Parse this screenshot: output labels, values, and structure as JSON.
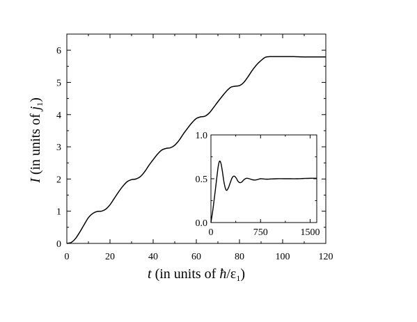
{
  "chart_data": [
    {
      "type": "line",
      "title": "",
      "xlabel": {
        "var": "t",
        "text": " (in units of ",
        "hbar": "ħ",
        "eps": "/ε",
        "sub": "1",
        "close": ")"
      },
      "ylabel": {
        "var": "I",
        "text": " (in units of ",
        "j": "j",
        "sub": "1",
        "close": ")"
      },
      "xlim": [
        0,
        120
      ],
      "ylim": [
        0,
        6.5
      ],
      "xticks": [
        0,
        20,
        40,
        60,
        80,
        100,
        120
      ],
      "yticks": [
        0,
        1,
        2,
        3,
        4,
        5,
        6
      ],
      "grid": false,
      "series": [
        {
          "color": "#000000",
          "x": [
            0,
            2,
            4,
            6,
            8,
            10,
            12,
            14,
            16,
            18,
            20,
            22,
            24,
            26,
            28,
            30,
            32,
            34,
            36,
            38,
            40,
            42,
            44,
            46,
            48,
            50,
            52,
            54,
            56,
            58,
            60,
            62,
            64,
            66,
            68,
            70,
            72,
            74,
            76,
            78,
            80,
            82,
            84,
            86,
            88,
            90,
            92,
            94,
            96,
            100,
            105,
            110,
            115,
            120
          ],
          "y": [
            0,
            0.03,
            0.15,
            0.35,
            0.58,
            0.8,
            0.93,
            0.99,
            1.0,
            1.06,
            1.2,
            1.4,
            1.6,
            1.78,
            1.92,
            1.98,
            2.0,
            2.07,
            2.22,
            2.42,
            2.6,
            2.77,
            2.9,
            2.95,
            2.97,
            3.05,
            3.2,
            3.4,
            3.58,
            3.75,
            3.88,
            3.93,
            3.95,
            4.05,
            4.22,
            4.4,
            4.57,
            4.73,
            4.85,
            4.88,
            4.9,
            5.0,
            5.18,
            5.38,
            5.55,
            5.68,
            5.78,
            5.8,
            5.8,
            5.8,
            5.8,
            5.79,
            5.79,
            5.79
          ]
        }
      ]
    },
    {
      "type": "line",
      "title": "",
      "xlabel": "",
      "ylabel": "",
      "xlim": [
        0,
        1600
      ],
      "ylim": [
        0,
        1.0
      ],
      "xticks": [
        0,
        750,
        1500
      ],
      "yticks": [
        0.0,
        0.5,
        1.0
      ],
      "ytick_labels": [
        "0.0",
        "0.5",
        "1.0"
      ],
      "grid": false,
      "series": [
        {
          "color": "#000000",
          "x": [
            0,
            30,
            60,
            90,
            110,
            130,
            150,
            170,
            200,
            230,
            260,
            290,
            320,
            350,
            380,
            410,
            440,
            470,
            500,
            540,
            580,
            620,
            660,
            700,
            750,
            800,
            850,
            900,
            1000,
            1100,
            1200,
            1300,
            1400,
            1500,
            1600
          ],
          "y": [
            0.0,
            0.15,
            0.33,
            0.52,
            0.64,
            0.7,
            0.68,
            0.6,
            0.45,
            0.37,
            0.39,
            0.45,
            0.51,
            0.53,
            0.51,
            0.47,
            0.455,
            0.465,
            0.49,
            0.505,
            0.5,
            0.49,
            0.485,
            0.49,
            0.5,
            0.497,
            0.495,
            0.497,
            0.5,
            0.5,
            0.5,
            0.5,
            0.503,
            0.505,
            0.505
          ]
        }
      ]
    }
  ]
}
